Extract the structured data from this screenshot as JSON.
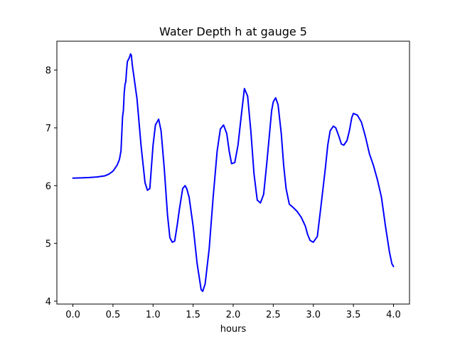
{
  "chart_data": {
    "type": "line",
    "title": "Water Depth h at gauge 5",
    "xlabel": "hours",
    "ylabel": "",
    "xlim": [
      -0.2,
      4.2
    ],
    "ylim": [
      3.95,
      8.5
    ],
    "xticks": [
      0.0,
      0.5,
      1.0,
      1.5,
      2.0,
      2.5,
      3.0,
      3.5,
      4.0
    ],
    "xtick_labels": [
      "0.0",
      "0.5",
      "1.0",
      "1.5",
      "2.0",
      "2.5",
      "3.0",
      "3.5",
      "4.0"
    ],
    "yticks": [
      4,
      5,
      6,
      7,
      8
    ],
    "ytick_labels": [
      "4",
      "5",
      "6",
      "7",
      "8"
    ],
    "grid": false,
    "series": [
      {
        "color": "#0000ff",
        "x": [
          0.0,
          0.1,
          0.2,
          0.3,
          0.4,
          0.45,
          0.5,
          0.55,
          0.58,
          0.6,
          0.61,
          0.62,
          0.63,
          0.64,
          0.65,
          0.66,
          0.67,
          0.68,
          0.7,
          0.72,
          0.73,
          0.74,
          0.76,
          0.8,
          0.85,
          0.9,
          0.93,
          0.96,
          1.0,
          1.03,
          1.07,
          1.1,
          1.14,
          1.18,
          1.21,
          1.24,
          1.27,
          1.3,
          1.33,
          1.37,
          1.4,
          1.42,
          1.45,
          1.5,
          1.55,
          1.6,
          1.62,
          1.65,
          1.7,
          1.75,
          1.8,
          1.84,
          1.88,
          1.92,
          1.95,
          1.98,
          2.02,
          2.06,
          2.1,
          2.14,
          2.18,
          2.22,
          2.26,
          2.3,
          2.34,
          2.38,
          2.42,
          2.45,
          2.48,
          2.5,
          2.53,
          2.56,
          2.6,
          2.63,
          2.66,
          2.7,
          2.75,
          2.8,
          2.85,
          2.9,
          2.93,
          2.96,
          3.0,
          3.05,
          3.1,
          3.15,
          3.18,
          3.21,
          3.25,
          3.28,
          3.32,
          3.35,
          3.38,
          3.42,
          3.45,
          3.48,
          3.5,
          3.55,
          3.6,
          3.65,
          3.7,
          3.75,
          3.8,
          3.85,
          3.9,
          3.95,
          3.98,
          4.0
        ],
        "y": [
          6.13,
          6.135,
          6.14,
          6.15,
          6.17,
          6.2,
          6.25,
          6.35,
          6.45,
          6.6,
          6.9,
          7.2,
          7.3,
          7.6,
          7.75,
          7.8,
          8.0,
          8.15,
          8.2,
          8.28,
          8.25,
          8.1,
          7.9,
          7.5,
          6.7,
          6.05,
          5.92,
          5.95,
          6.7,
          7.05,
          7.15,
          6.95,
          6.3,
          5.5,
          5.1,
          5.02,
          5.04,
          5.3,
          5.6,
          5.95,
          6.0,
          5.95,
          5.8,
          5.3,
          4.65,
          4.2,
          4.17,
          4.3,
          4.9,
          5.8,
          6.6,
          6.98,
          7.05,
          6.9,
          6.6,
          6.38,
          6.4,
          6.7,
          7.2,
          7.68,
          7.55,
          6.95,
          6.2,
          5.75,
          5.7,
          5.85,
          6.4,
          6.85,
          7.3,
          7.45,
          7.52,
          7.4,
          6.9,
          6.35,
          5.95,
          5.68,
          5.62,
          5.55,
          5.45,
          5.3,
          5.15,
          5.05,
          5.02,
          5.12,
          5.7,
          6.3,
          6.7,
          6.95,
          7.03,
          7.0,
          6.85,
          6.72,
          6.7,
          6.78,
          6.95,
          7.18,
          7.25,
          7.22,
          7.1,
          6.85,
          6.55,
          6.35,
          6.1,
          5.8,
          5.3,
          4.85,
          4.65,
          4.6
        ]
      }
    ]
  }
}
